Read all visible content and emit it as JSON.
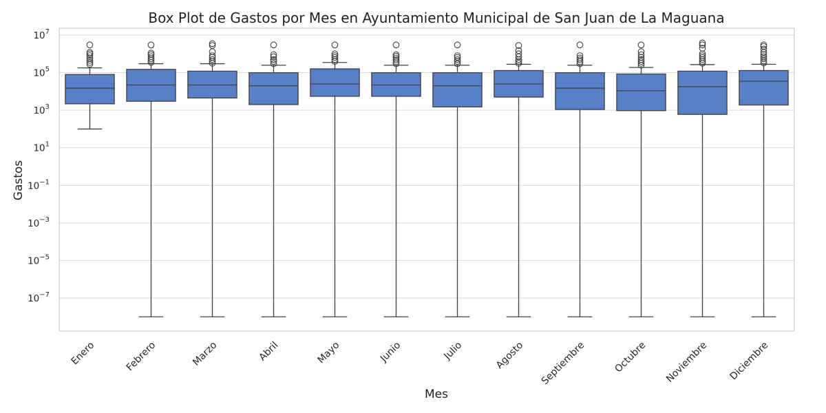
{
  "chart_data": {
    "type": "box",
    "title": "Box Plot de Gastos por Mes en Ayuntamiento Municipal de San Juan de La Maguana",
    "xlabel": "Mes",
    "ylabel": "Gastos",
    "yscale": "log",
    "ylim": [
      1e-09,
      20000000
    ],
    "yticks": [
      {
        "base": "10",
        "exp": "7",
        "value": 10000000
      },
      {
        "base": "10",
        "exp": "5",
        "value": 100000
      },
      {
        "base": "10",
        "exp": "3",
        "value": 1000
      },
      {
        "base": "10",
        "exp": "1",
        "value": 10
      },
      {
        "base": "10",
        "exp": "−1",
        "value": 0.1
      },
      {
        "base": "10",
        "exp": "−3",
        "value": 0.001
      },
      {
        "base": "10",
        "exp": "−5",
        "value": 1e-05
      },
      {
        "base": "10",
        "exp": "−7",
        "value": 1e-07
      }
    ],
    "grid": true,
    "box_color": "#5a7fc9",
    "line_color": "#404040",
    "categories": [
      "Enero",
      "Febrero",
      "Marzo",
      "Abril",
      "Mayo",
      "Junio",
      "Julio",
      "Agosto",
      "Septiembre",
      "Octubre",
      "Noviembre",
      "Diciembre"
    ],
    "boxes": [
      {
        "whisker_low": 100,
        "q1": 2200,
        "median": 15000,
        "q3": 80000,
        "whisker_high": 180000,
        "outliers": [
          280000,
          350000,
          450000,
          600000,
          800000,
          1000000,
          1200000,
          3000000
        ]
      },
      {
        "whisker_low": 1e-08,
        "q1": 3000,
        "median": 22000,
        "q3": 150000,
        "whisker_high": 300000,
        "outliers": [
          350000,
          450000,
          550000,
          700000,
          900000,
          1100000,
          3000000
        ]
      },
      {
        "whisker_low": 1e-08,
        "q1": 4500,
        "median": 22000,
        "q3": 120000,
        "whisker_high": 300000,
        "outliers": [
          320000,
          400000,
          500000,
          650000,
          800000,
          1300000,
          2800000,
          3500000
        ]
      },
      {
        "whisker_low": 1e-08,
        "q1": 2000,
        "median": 20000,
        "q3": 100000,
        "whisker_high": 250000,
        "outliers": [
          300000,
          400000,
          500000,
          700000,
          900000,
          3000000
        ]
      },
      {
        "whisker_low": 1e-08,
        "q1": 5500,
        "median": 25000,
        "q3": 160000,
        "whisker_high": 350000,
        "outliers": [
          400000,
          500000,
          650000,
          800000,
          1000000,
          3000000
        ]
      },
      {
        "whisker_low": 1e-08,
        "q1": 5500,
        "median": 22000,
        "q3": 100000,
        "whisker_high": 250000,
        "outliers": [
          300000,
          380000,
          480000,
          600000,
          750000,
          900000,
          3000000
        ]
      },
      {
        "whisker_low": 1e-08,
        "q1": 1500,
        "median": 20000,
        "q3": 100000,
        "whisker_high": 250000,
        "outliers": [
          300000,
          400000,
          500000,
          650000,
          800000,
          3000000
        ]
      },
      {
        "whisker_low": 1e-08,
        "q1": 5000,
        "median": 25000,
        "q3": 130000,
        "whisker_high": 280000,
        "outliers": [
          320000,
          400000,
          500000,
          700000,
          1000000,
          1500000,
          2800000
        ]
      },
      {
        "whisker_low": 1e-08,
        "q1": 1100,
        "median": 15000,
        "q3": 100000,
        "whisker_high": 250000,
        "outliers": [
          300000,
          380000,
          480000,
          600000,
          800000,
          3000000
        ]
      },
      {
        "whisker_low": 1e-08,
        "q1": 950,
        "median": 11000,
        "q3": 85000,
        "whisker_high": 190000,
        "outliers": [
          250000,
          320000,
          400000,
          500000,
          650000,
          900000,
          1300000,
          3000000
        ]
      },
      {
        "whisker_low": 1e-08,
        "q1": 600,
        "median": 18000,
        "q3": 120000,
        "whisker_high": 270000,
        "outliers": [
          320000,
          400000,
          500000,
          650000,
          800000,
          1000000,
          2000000,
          3000000,
          3800000
        ]
      },
      {
        "whisker_low": 1e-08,
        "q1": 1900,
        "median": 35000,
        "q3": 130000,
        "whisker_high": 280000,
        "outliers": [
          330000,
          420000,
          550000,
          700000,
          900000,
          1200000,
          1800000,
          2500000,
          3000000
        ]
      }
    ]
  }
}
